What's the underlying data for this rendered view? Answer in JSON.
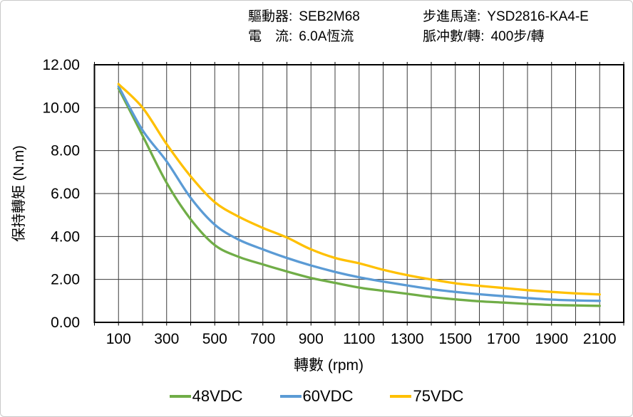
{
  "header": {
    "items": [
      {
        "id": "driver",
        "label": "驅動器:",
        "value": "SEB2M68"
      },
      {
        "id": "current",
        "label": "電　流:",
        "value": "6.0A恆流"
      },
      {
        "id": "motor",
        "label": "步進馬達:",
        "value": "YSD2816-KA4-E"
      },
      {
        "id": "pulses",
        "label": "脈冲數/轉:",
        "value": "400步/轉"
      }
    ]
  },
  "chart_data": {
    "type": "line",
    "title": "",
    "xlabel": "轉數 (rpm)",
    "ylabel": "保持轉矩 (N.m)",
    "xlim": [
      0,
      2200
    ],
    "ylim": [
      0,
      12
    ],
    "grid": "on",
    "legend_position": "bottom",
    "x_tick_labels": [
      "100",
      "300",
      "500",
      "700",
      "900",
      "1100",
      "1300",
      "1500",
      "1700",
      "1900",
      "2100"
    ],
    "x_tick_values": [
      100,
      300,
      500,
      700,
      900,
      1100,
      1300,
      1500,
      1700,
      1900,
      2100
    ],
    "y_tick_labels": [
      "0.00",
      "2.00",
      "4.00",
      "6.00",
      "8.00",
      "10.00",
      "12.00"
    ],
    "y_tick_values": [
      0,
      2,
      4,
      6,
      8,
      10,
      12
    ],
    "x_grid_step": 100,
    "y_grid_step": 2,
    "x": [
      100,
      200,
      300,
      400,
      500,
      600,
      700,
      800,
      900,
      1000,
      1100,
      1200,
      1300,
      1400,
      1500,
      1600,
      1700,
      1800,
      1900,
      2000,
      2100
    ],
    "series": [
      {
        "name": "48VDC",
        "color": "#70AD47",
        "values": [
          10.9,
          8.7,
          6.5,
          4.8,
          3.6,
          3.05,
          2.7,
          2.37,
          2.07,
          1.84,
          1.62,
          1.47,
          1.33,
          1.18,
          1.07,
          0.98,
          0.92,
          0.86,
          0.81,
          0.79,
          0.77
        ]
      },
      {
        "name": "60VDC",
        "color": "#5B9BD5",
        "values": [
          11.0,
          8.95,
          7.5,
          5.8,
          4.55,
          3.85,
          3.4,
          3.0,
          2.65,
          2.35,
          2.1,
          1.9,
          1.72,
          1.55,
          1.42,
          1.31,
          1.22,
          1.13,
          1.06,
          1.02,
          1.0
        ]
      },
      {
        "name": "75VDC",
        "color": "#FFC000",
        "values": [
          11.1,
          10.0,
          8.3,
          6.8,
          5.6,
          4.92,
          4.4,
          3.95,
          3.4,
          3.0,
          2.75,
          2.45,
          2.2,
          2.0,
          1.82,
          1.7,
          1.6,
          1.5,
          1.42,
          1.35,
          1.3
        ]
      }
    ],
    "axis_color": "#000000",
    "grid_color": "#3c3c3c",
    "text_color": "#000000"
  }
}
